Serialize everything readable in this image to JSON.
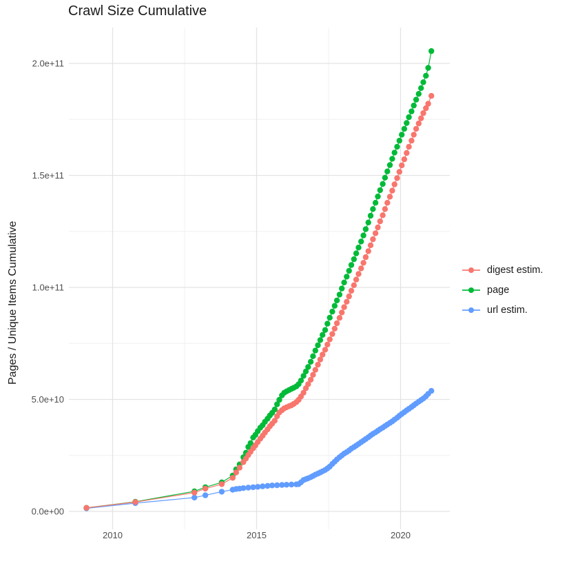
{
  "title": "Crawl Size Cumulative",
  "ylabel": "Pages / Unique Items Cumulative",
  "colors": {
    "digest": "#F8766D",
    "page": "#00BA38",
    "url": "#619CFF",
    "grid_major": "#e3e3e3",
    "grid_minor": "#f0f0f0",
    "tick_text": "#4d4d4d",
    "title_text": "#1a1a1a",
    "background": "#ffffff"
  },
  "chart_data": {
    "type": "line",
    "title": "Crawl Size Cumulative",
    "xlabel": "",
    "ylabel": "Pages / Unique Items Cumulative",
    "legend_position": "right",
    "grid": true,
    "x_range": [
      2008.5,
      2021.7
    ],
    "y_range_e10": [
      -0.9,
      21.4
    ],
    "y_unit": 10000000000.0,
    "x_ticks": [
      {
        "v": 2010,
        "label": "2010"
      },
      {
        "v": 2015,
        "label": "2015"
      },
      {
        "v": 2020,
        "label": "2020"
      }
    ],
    "x_minor": [
      2012.5,
      2017.5
    ],
    "y_ticks": [
      {
        "v": 0,
        "label": "0.0e+00"
      },
      {
        "v": 5,
        "label": "5.0e+10"
      },
      {
        "v": 10,
        "label": "1.0e+11"
      },
      {
        "v": 15,
        "label": "1.5e+11"
      },
      {
        "v": 20,
        "label": "2.0e+11"
      }
    ],
    "y_minor": [
      2.5,
      7.5,
      12.5,
      17.5
    ],
    "series": [
      {
        "name": "digest estim.",
        "color": "#F8766D",
        "points": [
          [
            2009.09,
            0.16
          ],
          [
            2010.79,
            0.42
          ],
          [
            2012.84,
            0.84
          ],
          [
            2013.22,
            1.02
          ],
          [
            2013.79,
            1.22
          ],
          [
            2014.17,
            1.5
          ],
          [
            2014.29,
            1.74
          ],
          [
            2014.41,
            1.95
          ],
          [
            2014.54,
            2.2
          ],
          [
            2014.63,
            2.36
          ],
          [
            2014.71,
            2.52
          ],
          [
            2014.79,
            2.66
          ],
          [
            2014.88,
            2.82
          ],
          [
            2014.96,
            2.95
          ],
          [
            2015.04,
            3.1
          ],
          [
            2015.13,
            3.25
          ],
          [
            2015.21,
            3.38
          ],
          [
            2015.29,
            3.52
          ],
          [
            2015.38,
            3.66
          ],
          [
            2015.46,
            3.8
          ],
          [
            2015.54,
            3.92
          ],
          [
            2015.63,
            4.05
          ],
          [
            2015.71,
            4.25
          ],
          [
            2015.79,
            4.42
          ],
          [
            2015.88,
            4.52
          ],
          [
            2015.96,
            4.6
          ],
          [
            2016.04,
            4.65
          ],
          [
            2016.13,
            4.7
          ],
          [
            2016.21,
            4.74
          ],
          [
            2016.29,
            4.8
          ],
          [
            2016.38,
            4.88
          ],
          [
            2016.46,
            4.98
          ],
          [
            2016.54,
            5.13
          ],
          [
            2016.63,
            5.3
          ],
          [
            2016.71,
            5.5
          ],
          [
            2016.79,
            5.68
          ],
          [
            2016.88,
            5.88
          ],
          [
            2016.96,
            6.1
          ],
          [
            2017.04,
            6.32
          ],
          [
            2017.13,
            6.55
          ],
          [
            2017.21,
            6.78
          ],
          [
            2017.29,
            7.0
          ],
          [
            2017.38,
            7.22
          ],
          [
            2017.46,
            7.45
          ],
          [
            2017.54,
            7.68
          ],
          [
            2017.63,
            7.92
          ],
          [
            2017.71,
            8.16
          ],
          [
            2017.79,
            8.4
          ],
          [
            2017.88,
            8.64
          ],
          [
            2017.96,
            8.88
          ],
          [
            2018.04,
            9.12
          ],
          [
            2018.13,
            9.36
          ],
          [
            2018.21,
            9.6
          ],
          [
            2018.29,
            9.85
          ],
          [
            2018.38,
            10.1
          ],
          [
            2018.46,
            10.35
          ],
          [
            2018.54,
            10.6
          ],
          [
            2018.63,
            10.85
          ],
          [
            2018.71,
            11.1
          ],
          [
            2018.79,
            11.35
          ],
          [
            2018.88,
            11.62
          ],
          [
            2018.96,
            11.88
          ],
          [
            2019.04,
            12.15
          ],
          [
            2019.13,
            12.42
          ],
          [
            2019.21,
            12.68
          ],
          [
            2019.29,
            12.95
          ],
          [
            2019.38,
            13.22
          ],
          [
            2019.46,
            13.5
          ],
          [
            2019.54,
            13.78
          ],
          [
            2019.63,
            14.05
          ],
          [
            2019.71,
            14.32
          ],
          [
            2019.79,
            14.6
          ],
          [
            2019.88,
            14.88
          ],
          [
            2019.96,
            15.16
          ],
          [
            2020.04,
            15.45
          ],
          [
            2020.13,
            15.72
          ],
          [
            2020.21,
            16.0
          ],
          [
            2020.29,
            16.28
          ],
          [
            2020.38,
            16.55
          ],
          [
            2020.46,
            16.82
          ],
          [
            2020.54,
            17.08
          ],
          [
            2020.63,
            17.32
          ],
          [
            2020.71,
            17.55
          ],
          [
            2020.79,
            17.78
          ],
          [
            2020.88,
            18.0
          ],
          [
            2020.96,
            18.2
          ],
          [
            2021.07,
            18.55
          ]
        ]
      },
      {
        "name": "page",
        "color": "#00BA38",
        "points": [
          [
            2009.09,
            0.16
          ],
          [
            2010.79,
            0.43
          ],
          [
            2012.84,
            0.9
          ],
          [
            2013.22,
            1.08
          ],
          [
            2013.79,
            1.3
          ],
          [
            2014.17,
            1.6
          ],
          [
            2014.29,
            1.88
          ],
          [
            2014.41,
            2.1
          ],
          [
            2014.54,
            2.42
          ],
          [
            2014.63,
            2.62
          ],
          [
            2014.71,
            2.88
          ],
          [
            2014.79,
            3.05
          ],
          [
            2014.88,
            3.3
          ],
          [
            2014.96,
            3.42
          ],
          [
            2015.04,
            3.58
          ],
          [
            2015.13,
            3.74
          ],
          [
            2015.21,
            3.85
          ],
          [
            2015.29,
            4.0
          ],
          [
            2015.38,
            4.14
          ],
          [
            2015.46,
            4.28
          ],
          [
            2015.54,
            4.4
          ],
          [
            2015.63,
            4.55
          ],
          [
            2015.71,
            4.78
          ],
          [
            2015.79,
            4.98
          ],
          [
            2015.88,
            5.18
          ],
          [
            2015.96,
            5.3
          ],
          [
            2016.04,
            5.36
          ],
          [
            2016.13,
            5.42
          ],
          [
            2016.21,
            5.47
          ],
          [
            2016.29,
            5.52
          ],
          [
            2016.38,
            5.58
          ],
          [
            2016.46,
            5.68
          ],
          [
            2016.54,
            5.84
          ],
          [
            2016.63,
            6.05
          ],
          [
            2016.71,
            6.25
          ],
          [
            2016.79,
            6.45
          ],
          [
            2016.88,
            6.68
          ],
          [
            2016.96,
            6.93
          ],
          [
            2017.04,
            7.18
          ],
          [
            2017.13,
            7.42
          ],
          [
            2017.21,
            7.65
          ],
          [
            2017.29,
            7.88
          ],
          [
            2017.38,
            8.1
          ],
          [
            2017.46,
            8.38
          ],
          [
            2017.54,
            8.65
          ],
          [
            2017.63,
            8.92
          ],
          [
            2017.71,
            9.18
          ],
          [
            2017.79,
            9.42
          ],
          [
            2017.88,
            9.68
          ],
          [
            2017.96,
            9.95
          ],
          [
            2018.04,
            10.22
          ],
          [
            2018.13,
            10.48
          ],
          [
            2018.21,
            10.74
          ],
          [
            2018.29,
            11.0
          ],
          [
            2018.38,
            11.26
          ],
          [
            2018.46,
            11.52
          ],
          [
            2018.54,
            11.78
          ],
          [
            2018.63,
            12.05
          ],
          [
            2018.71,
            12.32
          ],
          [
            2018.79,
            12.6
          ],
          [
            2018.88,
            12.9
          ],
          [
            2018.96,
            13.2
          ],
          [
            2019.04,
            13.5
          ],
          [
            2019.13,
            13.78
          ],
          [
            2019.21,
            14.06
          ],
          [
            2019.29,
            14.34
          ],
          [
            2019.38,
            14.62
          ],
          [
            2019.46,
            14.9
          ],
          [
            2019.54,
            15.18
          ],
          [
            2019.63,
            15.46
          ],
          [
            2019.71,
            15.74
          ],
          [
            2019.79,
            16.02
          ],
          [
            2019.88,
            16.28
          ],
          [
            2019.96,
            16.55
          ],
          [
            2020.04,
            16.82
          ],
          [
            2020.13,
            17.08
          ],
          [
            2020.21,
            17.34
          ],
          [
            2020.29,
            17.6
          ],
          [
            2020.38,
            17.86
          ],
          [
            2020.46,
            18.12
          ],
          [
            2020.54,
            18.38
          ],
          [
            2020.63,
            18.64
          ],
          [
            2020.71,
            18.9
          ],
          [
            2020.79,
            19.16
          ],
          [
            2020.88,
            19.45
          ],
          [
            2020.96,
            19.8
          ],
          [
            2021.07,
            20.55
          ]
        ]
      },
      {
        "name": "url estim.",
        "color": "#619CFF",
        "points": [
          [
            2009.09,
            0.14
          ],
          [
            2010.79,
            0.37
          ],
          [
            2012.84,
            0.62
          ],
          [
            2013.22,
            0.72
          ],
          [
            2013.79,
            0.88
          ],
          [
            2014.17,
            0.97
          ],
          [
            2014.29,
            1.0
          ],
          [
            2014.41,
            1.02
          ],
          [
            2014.54,
            1.04
          ],
          [
            2014.71,
            1.06
          ],
          [
            2014.88,
            1.08
          ],
          [
            2015.04,
            1.1
          ],
          [
            2015.21,
            1.12
          ],
          [
            2015.38,
            1.14
          ],
          [
            2015.54,
            1.16
          ],
          [
            2015.71,
            1.17
          ],
          [
            2015.88,
            1.18
          ],
          [
            2016.04,
            1.19
          ],
          [
            2016.21,
            1.2
          ],
          [
            2016.38,
            1.21
          ],
          [
            2016.46,
            1.22
          ],
          [
            2016.54,
            1.3
          ],
          [
            2016.63,
            1.4
          ],
          [
            2016.71,
            1.44
          ],
          [
            2016.79,
            1.48
          ],
          [
            2016.88,
            1.53
          ],
          [
            2016.96,
            1.58
          ],
          [
            2017.04,
            1.64
          ],
          [
            2017.13,
            1.69
          ],
          [
            2017.21,
            1.74
          ],
          [
            2017.29,
            1.79
          ],
          [
            2017.38,
            1.85
          ],
          [
            2017.46,
            1.92
          ],
          [
            2017.54,
            2.0
          ],
          [
            2017.63,
            2.12
          ],
          [
            2017.71,
            2.22
          ],
          [
            2017.79,
            2.32
          ],
          [
            2017.88,
            2.42
          ],
          [
            2017.96,
            2.5
          ],
          [
            2018.04,
            2.58
          ],
          [
            2018.13,
            2.65
          ],
          [
            2018.21,
            2.72
          ],
          [
            2018.29,
            2.8
          ],
          [
            2018.38,
            2.87
          ],
          [
            2018.46,
            2.94
          ],
          [
            2018.54,
            3.01
          ],
          [
            2018.63,
            3.09
          ],
          [
            2018.71,
            3.16
          ],
          [
            2018.79,
            3.23
          ],
          [
            2018.88,
            3.31
          ],
          [
            2018.96,
            3.39
          ],
          [
            2019.04,
            3.46
          ],
          [
            2019.13,
            3.53
          ],
          [
            2019.21,
            3.6
          ],
          [
            2019.29,
            3.67
          ],
          [
            2019.38,
            3.74
          ],
          [
            2019.46,
            3.81
          ],
          [
            2019.54,
            3.88
          ],
          [
            2019.63,
            3.95
          ],
          [
            2019.71,
            4.02
          ],
          [
            2019.79,
            4.1
          ],
          [
            2019.88,
            4.18
          ],
          [
            2019.96,
            4.27
          ],
          [
            2020.04,
            4.35
          ],
          [
            2020.13,
            4.43
          ],
          [
            2020.21,
            4.51
          ],
          [
            2020.29,
            4.58
          ],
          [
            2020.38,
            4.66
          ],
          [
            2020.46,
            4.74
          ],
          [
            2020.54,
            4.82
          ],
          [
            2020.63,
            4.9
          ],
          [
            2020.71,
            4.97
          ],
          [
            2020.79,
            5.04
          ],
          [
            2020.88,
            5.14
          ],
          [
            2020.96,
            5.25
          ],
          [
            2021.07,
            5.38
          ]
        ]
      }
    ]
  }
}
